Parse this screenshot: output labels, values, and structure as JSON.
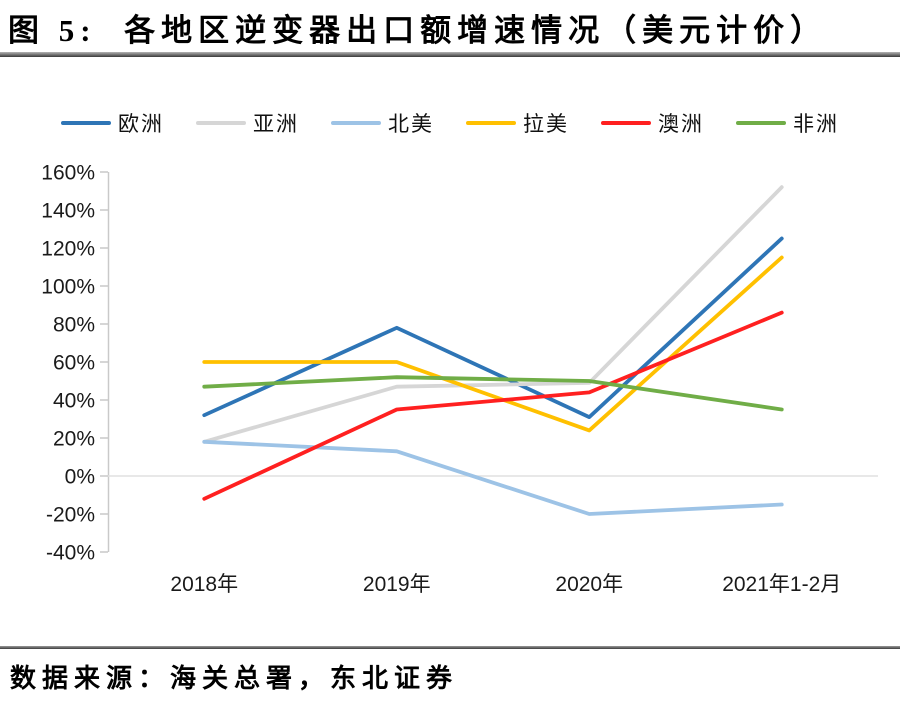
{
  "title": "图 5:  各地区逆变器出口额增速情况（美元计价）",
  "footer": {
    "source": "数据来源：海关总署，东北证券"
  },
  "chart_data": {
    "type": "line",
    "title": "各地区逆变器出口额增速情况（美元计价）",
    "categories": [
      "2018年",
      "2019年",
      "2020年",
      "2021年1-2月"
    ],
    "series": [
      {
        "name": "欧洲",
        "color": "#2E75B6",
        "values": [
          32,
          78,
          31,
          125
        ]
      },
      {
        "name": "亚洲",
        "color": "#D6D6D6",
        "values": [
          18,
          47,
          49,
          152
        ]
      },
      {
        "name": "北美",
        "color": "#9DC3E6",
        "values": [
          18,
          13,
          -20,
          -15
        ]
      },
      {
        "name": "拉美",
        "color": "#FFC000",
        "values": [
          60,
          60,
          24,
          115
        ]
      },
      {
        "name": "澳洲",
        "color": "#FF2020",
        "values": [
          -12,
          35,
          44,
          86
        ]
      },
      {
        "name": "非洲",
        "color": "#70AD47",
        "values": [
          47,
          52,
          50,
          35
        ]
      }
    ],
    "xlabel": "",
    "ylabel": "",
    "unit": "%",
    "ylim": [
      -40,
      160
    ],
    "y_tick_step": 20,
    "y_tick_labels": [
      "160%",
      "140%",
      "120%",
      "100%",
      "80%",
      "60%",
      "40%",
      "20%",
      "0%",
      "-20%",
      "-40%"
    ],
    "grid": "zero-line-only",
    "legend_position": "top",
    "axis_color": "#C9C9C9",
    "gridline_color": "#E0E0E0"
  }
}
